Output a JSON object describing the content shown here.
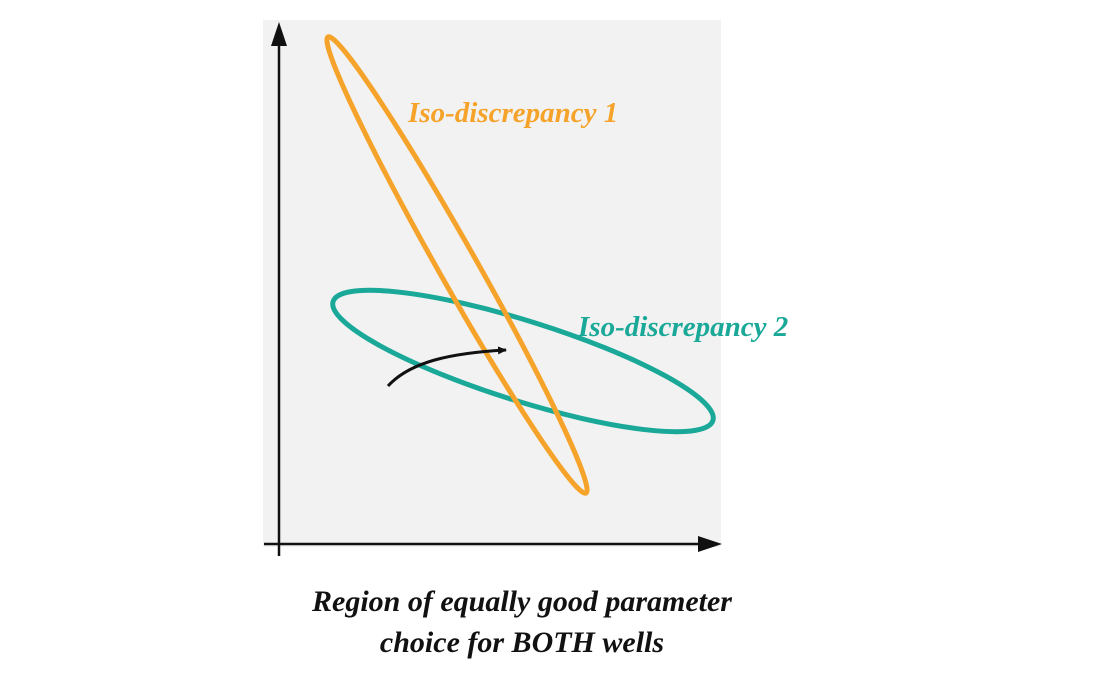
{
  "ellipse1": {
    "label": "Iso-discrepancy 1",
    "color": "#f5a32a"
  },
  "ellipse2": {
    "label": "Iso-discrepancy 2",
    "color": "#1aa898"
  },
  "caption": {
    "line1": "Region of equally good parameter",
    "line2": "choice for BOTH wells"
  },
  "colors": {
    "plot_background": "#f2f2f2",
    "axes": "#111111",
    "pointer_arrow": "#111111"
  }
}
